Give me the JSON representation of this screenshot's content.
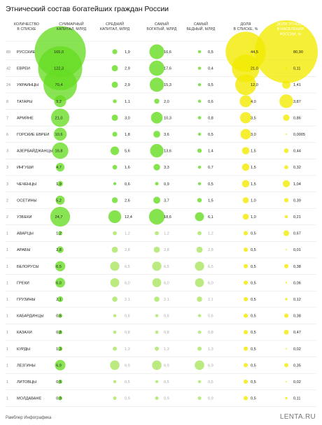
{
  "chart_data": {
    "type": "table",
    "title": "Этнический состав богатейших граждан России",
    "columns": [
      "КОЛИЧЕСТВО В СПИСКЕ",
      "СУММАРНЫЙ КАПИТАЛ, МЛРД",
      "СРЕДНИЙ КАПИТАЛ, МЛРД",
      "САМЫЙ БОГАТЫЙ, МЛРД",
      "САМЫЙ БЕДНЫЙ, МЛРД",
      "ДОЛЯ В СПИСКЕ, %",
      "ДОЛЯ ЭТНОСА В НАСЕЛЕНИИ РОССИИ, %"
    ],
    "rows": [
      {
        "count": "89",
        "name": "РУССКИЕ",
        "total": "165,0",
        "avg": "1,9",
        "richest": "16,6",
        "poorest": "0,5",
        "share_list": "44,5",
        "share_pop": "80,90"
      },
      {
        "count": "42",
        "name": "ЕВРЕИ",
        "total": "122,3",
        "avg": "2,9",
        "richest": "17,6",
        "poorest": "0,4",
        "share_list": "21,0",
        "share_pop": "0,11"
      },
      {
        "count": "24",
        "name": "УКРАИНЦЫ",
        "total": "70,4",
        "avg": "2,9",
        "richest": "15,3",
        "poorest": "0,5",
        "share_list": "12,0",
        "share_pop": "1,41"
      },
      {
        "count": "8",
        "name": "ТАТАРЫ",
        "total": "9,2",
        "avg": "1,1",
        "richest": "2,0",
        "poorest": "0,6",
        "share_list": "4,0",
        "share_pop": "3,87"
      },
      {
        "count": "7",
        "name": "АРМЯНЕ",
        "total": "21,0",
        "avg": "3,0",
        "richest": "10,3",
        "poorest": "0,8",
        "share_list": "3,5",
        "share_pop": "0,86"
      },
      {
        "count": "6",
        "name": "ГОРСКИЕ ЕВРЕИ",
        "total": "10,6",
        "avg": "1,8",
        "richest": "3,6",
        "poorest": "0,5",
        "share_list": "3,0",
        "share_pop": "0,0005"
      },
      {
        "count": "3",
        "name": "АЗЕРБАЙДЖАНЦЫ",
        "total": "16,8",
        "avg": "5,6",
        "richest": "13,6",
        "poorest": "1,4",
        "share_list": "1,5",
        "share_pop": "0,44"
      },
      {
        "count": "3",
        "name": "ИНГУШИ",
        "total": "4,7",
        "avg": "1,6",
        "richest": "3,3",
        "poorest": "0,7",
        "share_list": "1,5",
        "share_pop": "0,32"
      },
      {
        "count": "3",
        "name": "ЧЕЧЕНЦЫ",
        "total": "1,9",
        "avg": "0,6",
        "richest": "0,9",
        "poorest": "0,5",
        "share_list": "1,5",
        "share_pop": "1,04"
      },
      {
        "count": "2",
        "name": "ОСЕТИНЫ",
        "total": "5,2",
        "avg": "2,6",
        "richest": "3,7",
        "poorest": "1,5",
        "share_list": "1,0",
        "share_pop": "0,39"
      },
      {
        "count": "2",
        "name": "УЗБЕКИ",
        "total": "24,7",
        "avg": "12,4",
        "richest": "18,6",
        "poorest": "6,1",
        "share_list": "1,0",
        "share_pop": "0,21"
      },
      {
        "count": "1",
        "name": "АВАРЦЫ",
        "total": "1,2",
        "avg": "1,2",
        "richest": "1,2",
        "poorest": "1,2",
        "share_list": "0,5",
        "share_pop": "0,67"
      },
      {
        "count": "1",
        "name": "АРАБЫ",
        "total": "2,8",
        "avg": "2,8",
        "richest": "2,8",
        "poorest": "2,8",
        "share_list": "0,5",
        "share_pop": "0,01"
      },
      {
        "count": "1",
        "name": "БЕЛОРУСЫ",
        "total": "6,5",
        "avg": "6,5",
        "richest": "6,5",
        "poorest": "6,5",
        "share_list": "0,5",
        "share_pop": "0,38"
      },
      {
        "count": "1",
        "name": "ГРЕКИ",
        "total": "6,0",
        "avg": "6,0",
        "richest": "6,0",
        "poorest": "6,0",
        "share_list": "0,5",
        "share_pop": "0,06"
      },
      {
        "count": "1",
        "name": "ГРУЗИНЫ",
        "total": "2,1",
        "avg": "2,1",
        "richest": "2,1",
        "poorest": "2,1",
        "share_list": "0,5",
        "share_pop": "0,12"
      },
      {
        "count": "1",
        "name": "КАБАРДИНЦЫ",
        "total": "0,6",
        "avg": "0,6",
        "richest": "0,6",
        "poorest": "0,6",
        "share_list": "0,5",
        "share_pop": "0,38"
      },
      {
        "count": "1",
        "name": "КАЗАХИ",
        "total": "0,8",
        "avg": "0,8",
        "richest": "0,8",
        "poorest": "0,8",
        "share_list": "0,5",
        "share_pop": "0,47"
      },
      {
        "count": "1",
        "name": "КУРДЫ",
        "total": "1,3",
        "avg": "1,3",
        "richest": "1,3",
        "poorest": "1,3",
        "share_list": "0,5",
        "share_pop": "0,02"
      },
      {
        "count": "1",
        "name": "ЛЕЗГИНЫ",
        "total": "6,9",
        "avg": "6,9",
        "richest": "6,9",
        "poorest": "6,9",
        "share_list": "0,5",
        "share_pop": "0,35"
      },
      {
        "count": "1",
        "name": "ЛИТОВЦЫ",
        "total": "0,5",
        "avg": "0,5",
        "richest": "0,5",
        "poorest": "0,5",
        "share_list": "0,5",
        "share_pop": "0,02"
      },
      {
        "count": "1",
        "name": "МОЛДАВАНЕ",
        "total": "0,9",
        "avg": "0,9",
        "richest": "0,9",
        "poorest": "0,9",
        "share_list": "0,5",
        "share_pop": "0,11"
      }
    ]
  },
  "footer": {
    "source": "Рамблер Инфографика",
    "brand": "LENTA.RU"
  },
  "colors": {
    "green_bubble": "#66dd22",
    "light_green_bubble": "#aee66a",
    "yellow_bubble": "#f2ea00",
    "separator": "#e6e6e6"
  }
}
